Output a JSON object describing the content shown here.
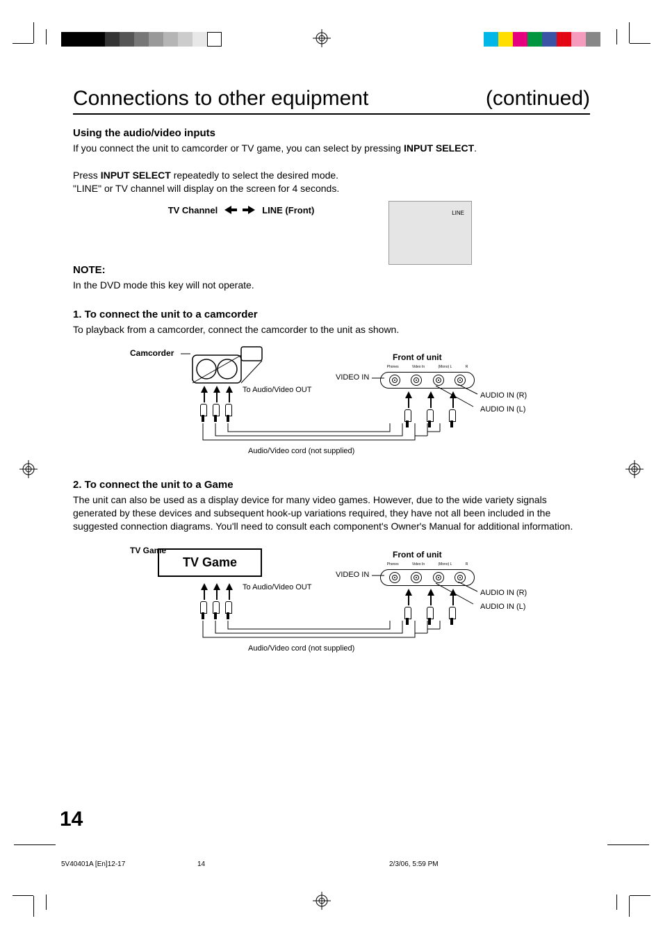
{
  "print_marks": {
    "grayscale_bar": [
      "#000000",
      "#000000",
      "#000000",
      "#333333",
      "#555555",
      "#777777",
      "#999999",
      "#b5b5b5",
      "#cccccc",
      "#e8e8e8",
      "#ffffff"
    ],
    "color_bar": [
      "#00b7e7",
      "#ffde00",
      "#e6007e",
      "#009640",
      "#3a53a4",
      "#e30613",
      "#f59bbd",
      "#878787"
    ]
  },
  "header": {
    "title": "Connections to other equipment",
    "continued": "(continued)"
  },
  "section_intro": {
    "heading": "Using the audio/video inputs",
    "line1_a": "If you connect the unit to camcorder or TV game, you can select by pressing ",
    "line1_b": "INPUT SELECT",
    "line1_c": ".",
    "line2_a": "Press ",
    "line2_b": "INPUT SELECT",
    "line2_c": " repeatedly to select the desired mode.",
    "line3": "\"LINE\" or TV channel will display on the screen for 4 seconds.",
    "mode_left": "TV Channel",
    "mode_right": "LINE (Front)",
    "screen_label": "LINE"
  },
  "note": {
    "heading": "NOTE:",
    "body": "In the DVD mode this key will not operate."
  },
  "sec1": {
    "heading": "1. To connect the unit to a camcorder",
    "body": "To playback from a camcorder, connect the camcorder to the unit as shown.",
    "labels": {
      "device": "Camcorder",
      "to_av_out": "To Audio/Video OUT",
      "cord": "Audio/Video cord (not supplied)",
      "front": "Front of unit",
      "video_in": "VIDEO IN",
      "audio_r": "AUDIO IN (R)",
      "audio_l": "AUDIO IN (L)",
      "jacks": [
        "Phones",
        "Video In",
        "(Mono) L",
        "- Video In -",
        "R"
      ]
    }
  },
  "sec2": {
    "heading": "2. To connect the unit to a Game",
    "body": "The unit can also be used as a display device for many video games. However, due to the wide variety signals generated by these devices and subsequent hook-up variations required, they have not all been included in the suggested connection diagrams. You'll need to consult each component's Owner's Manual for additional information.",
    "labels": {
      "device": "TV Game",
      "to_av_out": "To Audio/Video OUT",
      "cord": "Audio/Video cord (not supplied)",
      "front": "Front of unit",
      "video_in": "VIDEO IN",
      "audio_r": "AUDIO IN (R)",
      "audio_l": "AUDIO IN (L)",
      "jacks": [
        "Phones",
        "Video In",
        "(Mono) L",
        "- Video In -",
        "R"
      ]
    }
  },
  "page_number": "14",
  "footer": {
    "doc_id": "5V40401A [En]12-17",
    "page": "14",
    "timestamp": "2/3/06, 5:59 PM"
  }
}
